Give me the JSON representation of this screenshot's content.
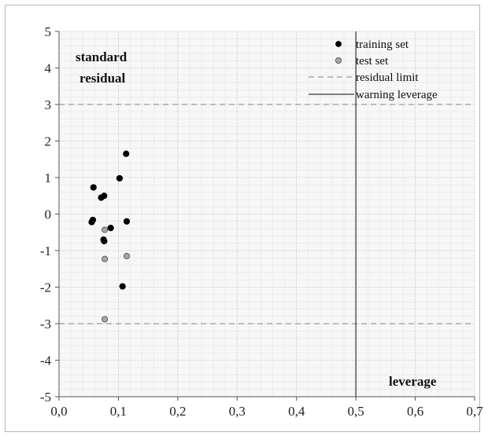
{
  "chart_data": {
    "type": "scatter",
    "xlabel": "leverage",
    "ylabel_line1": "standard",
    "ylabel_line2": "residual",
    "xlim": [
      0,
      0.7
    ],
    "ylim": [
      -5,
      5
    ],
    "x_ticks": [
      "0,0",
      "0,1",
      "0,2",
      "0,3",
      "0,4",
      "0,5",
      "0,6",
      "0,7"
    ],
    "y_ticks": [
      "5",
      "4",
      "3",
      "2",
      "1",
      "0",
      "-1",
      "-2",
      "-3",
      "-4",
      "-5"
    ],
    "grid": true,
    "legend_position": "top-right",
    "residual_limit": [
      3,
      -3
    ],
    "warning_leverage": 0.5,
    "legend": {
      "training": "training set",
      "test": "test set",
      "limit": "residual limit",
      "warning": "warning leverage"
    },
    "series": [
      {
        "name": "training set",
        "color": "#000000",
        "points": [
          {
            "x": 0.113,
            "y": 1.65
          },
          {
            "x": 0.102,
            "y": 0.98
          },
          {
            "x": 0.058,
            "y": 0.73
          },
          {
            "x": 0.076,
            "y": 0.5
          },
          {
            "x": 0.071,
            "y": 0.45
          },
          {
            "x": 0.057,
            "y": -0.16
          },
          {
            "x": 0.055,
            "y": -0.22
          },
          {
            "x": 0.114,
            "y": -0.2
          },
          {
            "x": 0.087,
            "y": -0.38
          },
          {
            "x": 0.075,
            "y": -0.7
          },
          {
            "x": 0.076,
            "y": -0.74
          },
          {
            "x": 0.107,
            "y": -1.98
          }
        ]
      },
      {
        "name": "test set",
        "color": "#a6a6a6",
        "points": [
          {
            "x": 0.077,
            "y": -0.43
          },
          {
            "x": 0.114,
            "y": -1.15
          },
          {
            "x": 0.077,
            "y": -1.23
          },
          {
            "x": 0.077,
            "y": -2.88
          }
        ]
      }
    ]
  }
}
